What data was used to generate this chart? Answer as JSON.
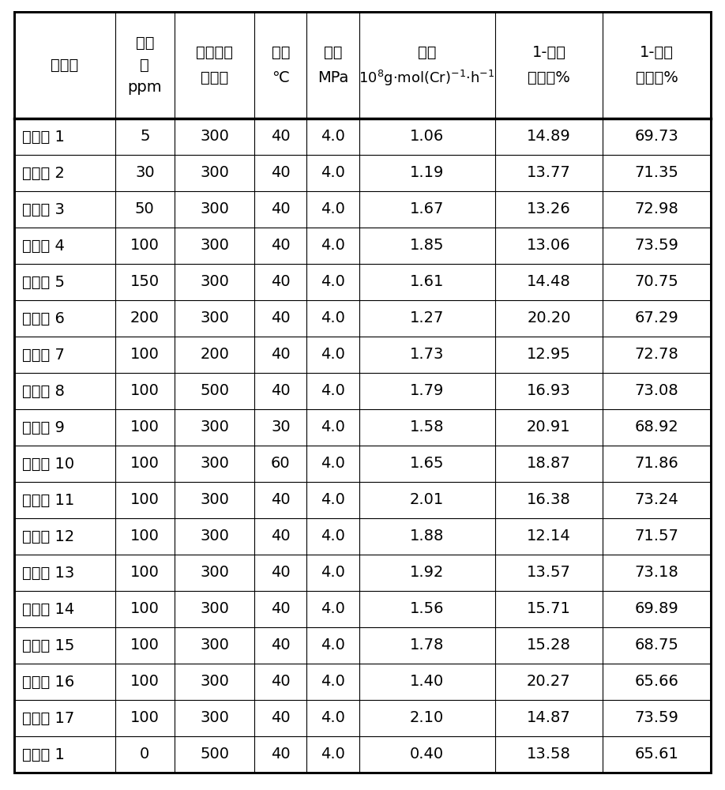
{
  "headers_line1": [
    "实施例",
    "水含",
    "铝与金属",
    "温度",
    "压力",
    "活性",
    "1-己烯",
    "1-辛烯"
  ],
  "headers_line2": [
    "",
    "量",
    "摩尔比",
    "℃",
    "MPa",
    "10⁸g·mol(Cr)⁻¹·h⁻¹",
    "选择性%",
    "选择性%"
  ],
  "headers_line3": [
    "",
    "ppm",
    "",
    "",
    "",
    "",
    "",
    ""
  ],
  "rows": [
    [
      "实施例 1",
      "5",
      "300",
      "40",
      "4.0",
      "1.06",
      "14.89",
      "69.73"
    ],
    [
      "实施例 2",
      "30",
      "300",
      "40",
      "4.0",
      "1.19",
      "13.77",
      "71.35"
    ],
    [
      "实施例 3",
      "50",
      "300",
      "40",
      "4.0",
      "1.67",
      "13.26",
      "72.98"
    ],
    [
      "实施例 4",
      "100",
      "300",
      "40",
      "4.0",
      "1.85",
      "13.06",
      "73.59"
    ],
    [
      "实施例 5",
      "150",
      "300",
      "40",
      "4.0",
      "1.61",
      "14.48",
      "70.75"
    ],
    [
      "实施例 6",
      "200",
      "300",
      "40",
      "4.0",
      "1.27",
      "20.20",
      "67.29"
    ],
    [
      "实施例 7",
      "100",
      "200",
      "40",
      "4.0",
      "1.73",
      "12.95",
      "72.78"
    ],
    [
      "实施例 8",
      "100",
      "500",
      "40",
      "4.0",
      "1.79",
      "16.93",
      "73.08"
    ],
    [
      "实施例 9",
      "100",
      "300",
      "30",
      "4.0",
      "1.58",
      "20.91",
      "68.92"
    ],
    [
      "实施例 10",
      "100",
      "300",
      "60",
      "4.0",
      "1.65",
      "18.87",
      "71.86"
    ],
    [
      "实施例 11",
      "100",
      "300",
      "40",
      "4.0",
      "2.01",
      "16.38",
      "73.24"
    ],
    [
      "实施例 12",
      "100",
      "300",
      "40",
      "4.0",
      "1.88",
      "12.14",
      "71.57"
    ],
    [
      "实施例 13",
      "100",
      "300",
      "40",
      "4.0",
      "1.92",
      "13.57",
      "73.18"
    ],
    [
      "实施例 14",
      "100",
      "300",
      "40",
      "4.0",
      "1.56",
      "15.71",
      "69.89"
    ],
    [
      "实施例 15",
      "100",
      "300",
      "40",
      "4.0",
      "1.78",
      "15.28",
      "68.75"
    ],
    [
      "实施例 16",
      "100",
      "300",
      "40",
      "4.0",
      "1.40",
      "20.27",
      "65.66"
    ],
    [
      "实施例 17",
      "100",
      "300",
      "40",
      "4.0",
      "2.10",
      "14.87",
      "73.59"
    ],
    [
      "对比例 1",
      "0",
      "500",
      "40",
      "4.0",
      "0.40",
      "13.58",
      "65.61"
    ]
  ],
  "col_weights": [
    1.45,
    0.85,
    1.15,
    0.75,
    0.75,
    1.95,
    1.55,
    1.55
  ],
  "bg_color": "#ffffff",
  "line_color": "#000000",
  "text_color": "#000000",
  "font_size": 14,
  "header_font_size": 14
}
